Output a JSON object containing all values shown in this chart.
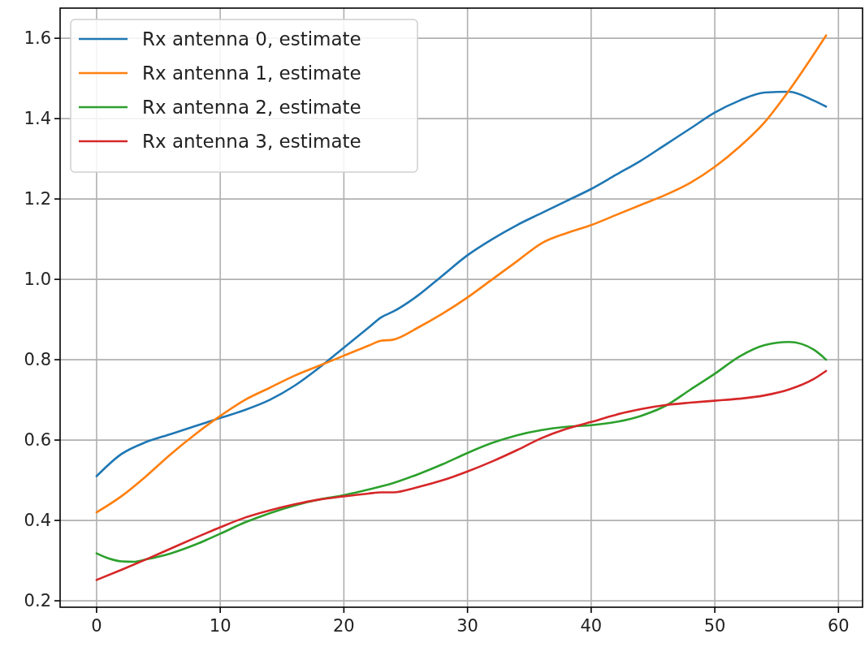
{
  "chart_data": {
    "type": "line",
    "xlim": [
      -2.95,
      61.95
    ],
    "xticks": [
      0,
      10,
      20,
      30,
      40,
      50,
      60
    ],
    "ylim": [
      0.184,
      1.675
    ],
    "yticks": [
      {
        "value": 0.2,
        "label": "0.2"
      },
      {
        "value": 0.4,
        "label": "0.4"
      },
      {
        "value": 0.6,
        "label": "0.6"
      },
      {
        "value": 0.8,
        "label": "0.8"
      },
      {
        "value": 1.0,
        "label": "1.0"
      },
      {
        "value": 1.2,
        "label": "1.2"
      },
      {
        "value": 1.4,
        "label": "1.4"
      },
      {
        "value": 1.6,
        "label": "1.6"
      }
    ],
    "grid": true,
    "legend": "top left",
    "series": [
      {
        "name": "Rx antenna 0, estimate",
        "color": "#1f77b4",
        "x": [
          0,
          2,
          4,
          6,
          8,
          10,
          12,
          14,
          16,
          18,
          20,
          22,
          23,
          24,
          26,
          28,
          30,
          32,
          34,
          36,
          38,
          40,
          42,
          44,
          46,
          48,
          50,
          52,
          54,
          56,
          58,
          59
        ],
        "values": [
          0.51,
          0.565,
          0.595,
          0.615,
          0.635,
          0.655,
          0.675,
          0.7,
          0.735,
          0.78,
          0.83,
          0.88,
          0.905,
          0.92,
          0.96,
          1.01,
          1.06,
          1.1,
          1.135,
          1.165,
          1.195,
          1.225,
          1.26,
          1.295,
          1.335,
          1.375,
          1.415,
          1.445,
          1.465,
          1.467,
          1.445,
          1.43
        ]
      },
      {
        "name": "Rx antenna 1, estimate",
        "color": "#ff7f0e",
        "x": [
          0,
          2,
          4,
          6,
          8,
          10,
          12,
          14,
          16,
          18,
          20,
          22,
          23,
          24,
          26,
          28,
          30,
          32,
          34,
          36,
          38,
          40,
          42,
          44,
          46,
          48,
          50,
          52,
          54,
          56,
          58,
          59
        ],
        "values": [
          0.42,
          0.46,
          0.51,
          0.565,
          0.615,
          0.66,
          0.7,
          0.73,
          0.76,
          0.785,
          0.81,
          0.835,
          0.847,
          0.85,
          0.88,
          0.915,
          0.955,
          1.0,
          1.045,
          1.09,
          1.115,
          1.135,
          1.16,
          1.185,
          1.21,
          1.24,
          1.28,
          1.33,
          1.39,
          1.47,
          1.56,
          1.607
        ]
      },
      {
        "name": "Rx antenna 2, estimate",
        "color": "#2ca02c",
        "x": [
          0,
          1,
          2,
          3,
          4,
          6,
          8,
          10,
          12,
          14,
          16,
          18,
          20,
          22,
          24,
          26,
          28,
          30,
          32,
          34,
          36,
          38,
          40,
          42,
          44,
          46,
          48,
          50,
          52,
          54,
          56,
          58,
          59
        ],
        "values": [
          0.318,
          0.305,
          0.298,
          0.297,
          0.303,
          0.318,
          0.34,
          0.367,
          0.395,
          0.418,
          0.437,
          0.452,
          0.463,
          0.477,
          0.493,
          0.515,
          0.54,
          0.568,
          0.593,
          0.612,
          0.625,
          0.633,
          0.637,
          0.645,
          0.66,
          0.685,
          0.725,
          0.765,
          0.808,
          0.836,
          0.844,
          0.825,
          0.8
        ]
      },
      {
        "name": "Rx antenna 3, estimate",
        "color": "#d62728",
        "x": [
          0,
          2,
          4,
          6,
          8,
          10,
          12,
          14,
          16,
          18,
          20,
          22,
          23,
          24,
          26,
          28,
          30,
          32,
          34,
          36,
          38,
          40,
          42,
          44,
          46,
          48,
          50,
          52,
          54,
          56,
          58,
          59
        ],
        "values": [
          0.252,
          0.277,
          0.303,
          0.33,
          0.357,
          0.383,
          0.407,
          0.425,
          0.44,
          0.452,
          0.46,
          0.467,
          0.47,
          0.47,
          0.483,
          0.5,
          0.522,
          0.547,
          0.575,
          0.605,
          0.628,
          0.645,
          0.663,
          0.677,
          0.687,
          0.693,
          0.698,
          0.703,
          0.711,
          0.726,
          0.752,
          0.772
        ]
      }
    ]
  }
}
